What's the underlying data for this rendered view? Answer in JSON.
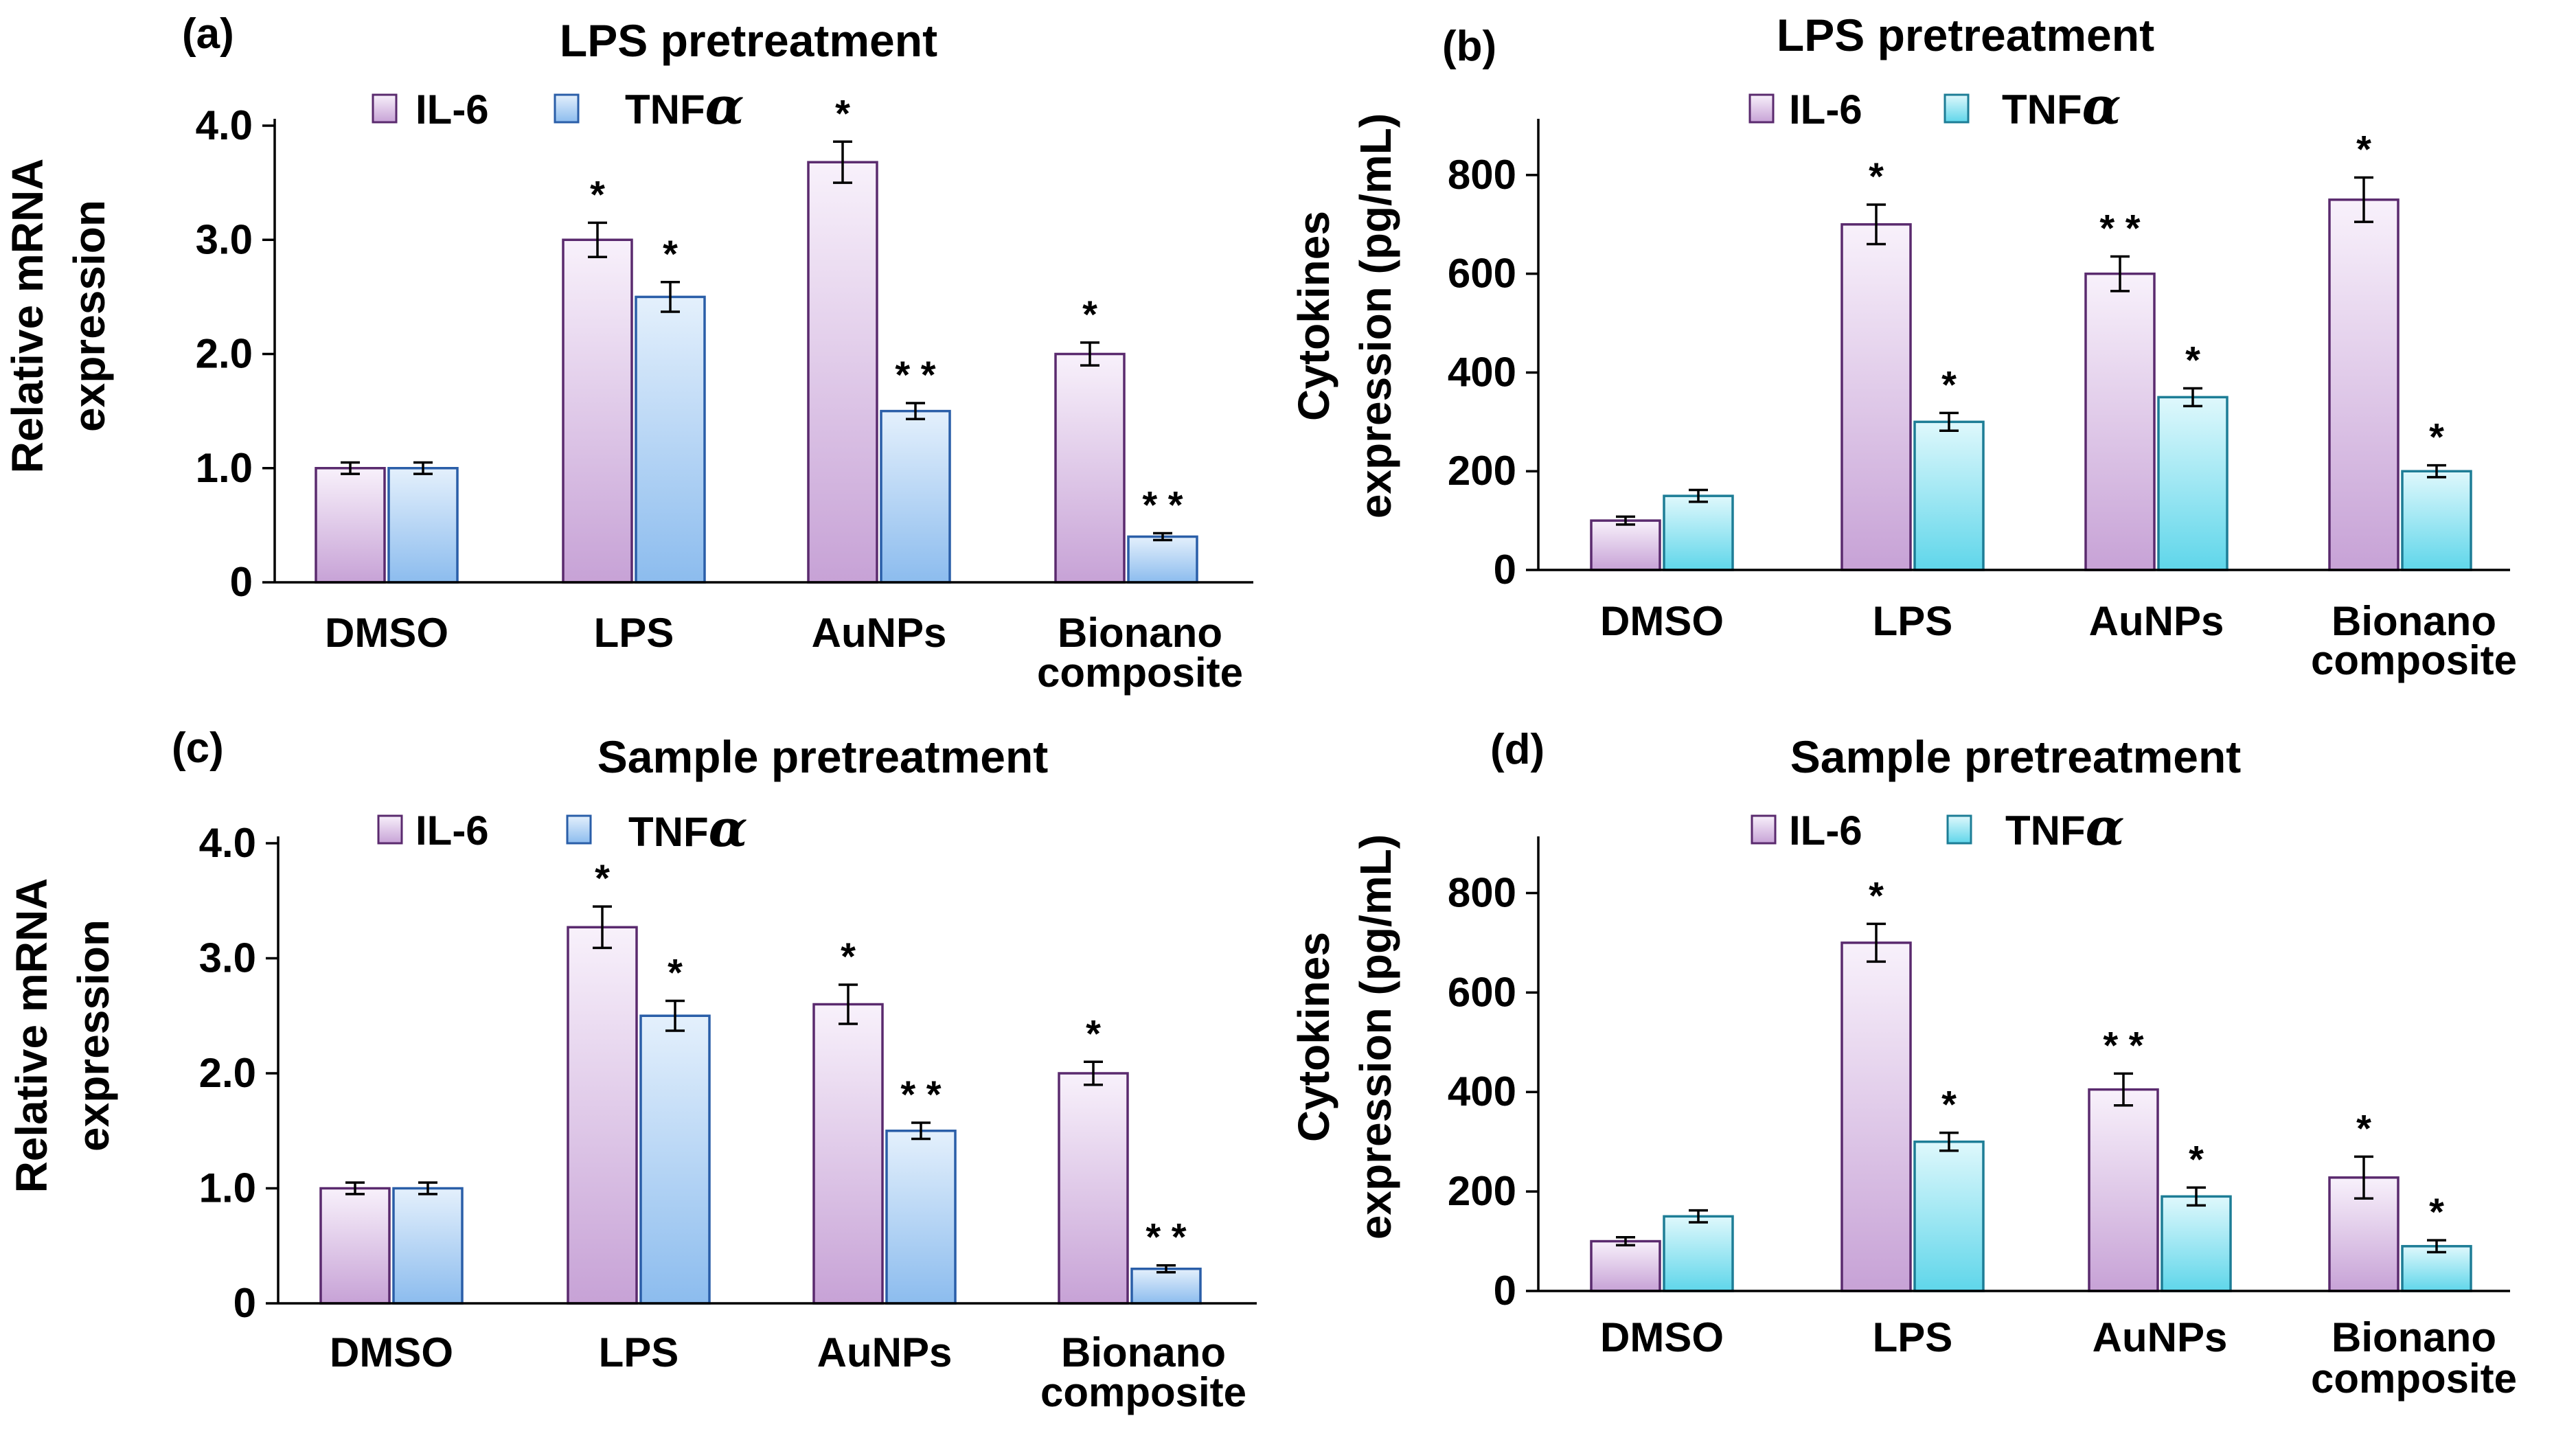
{
  "chart_data": [
    {
      "type": "bar",
      "panel": "(a)",
      "title": "LPS pretreatment",
      "ylabel_line1": "Relative mRNA",
      "ylabel_line2": "expression",
      "ylim": [
        0,
        4.0
      ],
      "yticks": [
        0,
        1.0,
        2.0,
        3.0,
        4.0
      ],
      "ytick_labels": [
        "0",
        "1.0",
        "2.0",
        "3.0",
        "4.0"
      ],
      "categories": [
        "DMSO",
        "LPS",
        "AuNPs",
        "Bionano composite"
      ],
      "category_lines": [
        [
          "DMSO"
        ],
        [
          "LPS"
        ],
        [
          "AuNPs"
        ],
        [
          "Bionano",
          "composite"
        ]
      ],
      "series": [
        {
          "name": "IL-6",
          "values": [
            1.0,
            3.0,
            3.68,
            2.0
          ],
          "errors": [
            0.05,
            0.15,
            0.18,
            0.1
          ],
          "sig": [
            "",
            "*",
            "*",
            "*"
          ]
        },
        {
          "name": "TNFα",
          "values": [
            1.0,
            2.5,
            1.5,
            0.4
          ],
          "errors": [
            0.05,
            0.13,
            0.07,
            0.03
          ],
          "sig": [
            "",
            "*",
            "* *",
            "* *"
          ]
        }
      ]
    },
    {
      "type": "bar",
      "panel": "(b)",
      "title": "LPS pretreatment",
      "ylabel_line1": "Cytokines",
      "ylabel_line2": "expression (pg/mL)",
      "ylim": [
        0,
        900
      ],
      "yticks": [
        0,
        200,
        400,
        600,
        800
      ],
      "ytick_labels": [
        "0",
        "200",
        "400",
        "600",
        "800"
      ],
      "categories": [
        "DMSO",
        "LPS",
        "AuNPs",
        "Bionano composite"
      ],
      "category_lines": [
        [
          "DMSO"
        ],
        [
          "LPS"
        ],
        [
          "AuNPs"
        ],
        [
          "Bionano",
          "composite"
        ]
      ],
      "series": [
        {
          "name": "IL-6",
          "values": [
            100,
            700,
            600,
            750
          ],
          "errors": [
            8,
            40,
            35,
            45
          ],
          "sig": [
            "",
            "*",
            "* *",
            "*"
          ]
        },
        {
          "name": "TNFα",
          "values": [
            150,
            300,
            350,
            200
          ],
          "errors": [
            12,
            18,
            18,
            12
          ],
          "sig": [
            "",
            "*",
            "*",
            "*"
          ]
        }
      ]
    },
    {
      "type": "bar",
      "panel": "(c)",
      "title": "Sample pretreatment",
      "ylabel_line1": "Relative mRNA",
      "ylabel_line2": "expression",
      "ylim": [
        0,
        4.0
      ],
      "yticks": [
        0,
        1.0,
        2.0,
        3.0,
        4.0
      ],
      "ytick_labels": [
        "0",
        "1.0",
        "2.0",
        "3.0",
        "4.0"
      ],
      "categories": [
        "DMSO",
        "LPS",
        "AuNPs",
        "Bionano composite"
      ],
      "category_lines": [
        [
          "DMSO"
        ],
        [
          "LPS"
        ],
        [
          "AuNPs"
        ],
        [
          "Bionano",
          "composite"
        ]
      ],
      "series": [
        {
          "name": "IL-6",
          "values": [
            1.0,
            3.27,
            2.6,
            2.0
          ],
          "errors": [
            0.05,
            0.18,
            0.17,
            0.1
          ],
          "sig": [
            "",
            "*",
            "*",
            "*"
          ]
        },
        {
          "name": "TNFα",
          "values": [
            1.0,
            2.5,
            1.5,
            0.3
          ],
          "errors": [
            0.05,
            0.13,
            0.07,
            0.03
          ],
          "sig": [
            "",
            "*",
            "* *",
            "* *"
          ]
        }
      ]
    },
    {
      "type": "bar",
      "panel": "(d)",
      "title": "Sample pretreatment",
      "ylabel_line1": "Cytokines",
      "ylabel_line2": "expression (pg/mL)",
      "ylim": [
        0,
        900
      ],
      "yticks": [
        0,
        200,
        400,
        600,
        800
      ],
      "ytick_labels": [
        "0",
        "200",
        "400",
        "600",
        "800"
      ],
      "categories": [
        "DMSO",
        "LPS",
        "AuNPs",
        "Bionano composite"
      ],
      "category_lines": [
        [
          "DMSO"
        ],
        [
          "LPS"
        ],
        [
          "AuNPs"
        ],
        [
          "Bionano",
          "composite"
        ]
      ],
      "series": [
        {
          "name": "IL-6",
          "values": [
            100,
            700,
            405,
            228
          ],
          "errors": [
            8,
            38,
            32,
            42
          ],
          "sig": [
            "",
            "*",
            "* *",
            "*"
          ]
        },
        {
          "name": "TNFα",
          "values": [
            150,
            300,
            190,
            90
          ],
          "errors": [
            12,
            18,
            18,
            12
          ],
          "sig": [
            "",
            "*",
            "*",
            "*"
          ]
        }
      ]
    }
  ],
  "colors": {
    "il6_fill_top": "#f8f1fb",
    "il6_fill_bottom": "#c7a2d6",
    "il6_stroke": "#5a2a6e",
    "tnf_a_fill_top": "#e4f0fc",
    "tnf_a_fill_bottom": "#8cbcee",
    "tnf_a_stroke": "#2a5ea8",
    "tnf_b_fill_top": "#dff8fc",
    "tnf_b_fill_bottom": "#5fd6ea",
    "tnf_b_stroke": "#1d7d96"
  }
}
